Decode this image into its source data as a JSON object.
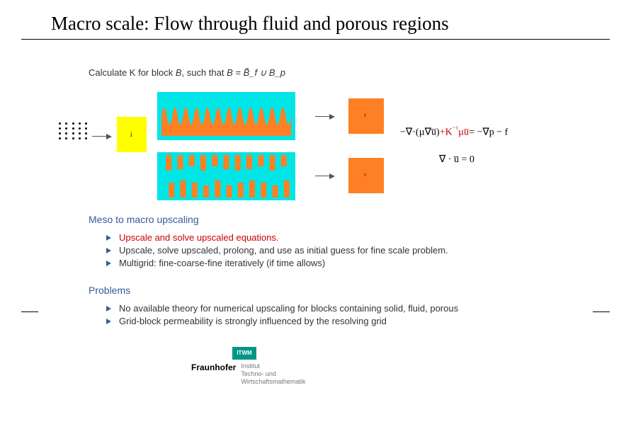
{
  "title": "Macro scale:  Flow through fluid and porous regions",
  "calc_line_pre": "Calculate K for block ",
  "calc_line_B": "B",
  "calc_line_mid": ", such that ",
  "calc_line_eq": "B = B̃_f ∪ B_p",
  "diagram": {
    "yellow_label": "i",
    "orange_top_label": "²",
    "orange_bot_label": "³",
    "colors": {
      "yellow": "#ffff00",
      "cyan": "#00e5e5",
      "orange": "#ff7f24"
    },
    "wave": {
      "count": 12,
      "amp": 24,
      "fill": "#ff7f24"
    },
    "bars": {
      "rows": 2,
      "per_row": 11,
      "fill": "#ff7f24"
    },
    "arrows": [
      "dot-to-yellow",
      "cyan-top-to-orange",
      "cyan-bot-to-orange"
    ]
  },
  "eq1_a": "−∇·(µ∇u̅)",
  "eq1_plusK": "+K",
  "eq1_exp": "⁻¹",
  "eq1_mu_u": "µu̅",
  "eq1_rhs": "= −∇p − f",
  "eq2": "∇ · u̅ = 0",
  "section1": "Meso to macro upscaling",
  "bullets1": [
    {
      "text": "Upscale and solve upscaled equations.",
      "red": true
    },
    {
      "text": "Upscale, solve upscaled, prolong, and use as initial guess for fine scale problem.",
      "red": false
    },
    {
      "text": "Multigrid: fine-coarse-fine iteratively (if time allows)",
      "red": false
    }
  ],
  "section2": "Problems",
  "bullets2": [
    {
      "text": "No available theory for numerical upscaling for blocks containing solid, fluid, porous",
      "red": false
    },
    {
      "text": "Grid-block permeability is strongly influenced by the resolving grid",
      "red": false
    }
  ],
  "footer": {
    "itwm": "ITWM",
    "fraunhofer": "Fraunhofer",
    "sub1": "Institut",
    "sub2": "Techno- und",
    "sub3": "Wirtschaftsmathematik"
  }
}
